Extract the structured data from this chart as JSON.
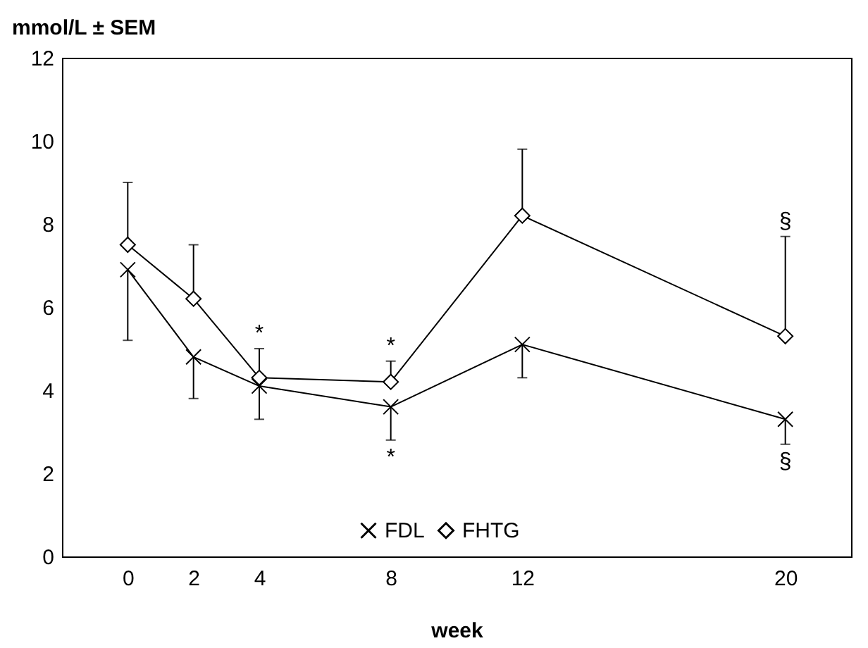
{
  "chart_data": {
    "type": "line",
    "x": [
      0,
      2,
      4,
      8,
      12,
      20
    ],
    "xlabel": "week",
    "ylabel": "mmol/L ± SEM",
    "xlim": [
      -2,
      22
    ],
    "xticks": [
      0,
      2,
      4,
      8,
      12,
      20
    ],
    "ylim": [
      0,
      12
    ],
    "yticks": [
      0,
      2,
      4,
      6,
      8,
      10,
      12
    ],
    "grid": false,
    "legend": "bottom",
    "line_style": "solid",
    "series": [
      {
        "name": "FDL",
        "color": "#000000",
        "marker": "cross",
        "values": [
          6.9,
          4.8,
          4.1,
          3.6,
          5.1,
          3.3
        ],
        "errors": [
          [
            5.2,
            6.9
          ],
          [
            3.8,
            4.8
          ],
          [
            3.3,
            4.1
          ],
          [
            2.8,
            3.6
          ],
          [
            4.3,
            5.1
          ],
          [
            2.7,
            3.3
          ]
        ]
      },
      {
        "name": "FHTG",
        "color": "#000000",
        "marker": "diamond",
        "values": [
          7.5,
          6.2,
          4.3,
          4.2,
          8.2,
          5.3
        ],
        "errors": [
          [
            7.5,
            9.0
          ],
          [
            6.2,
            7.5
          ],
          [
            4.3,
            5.0
          ],
          [
            4.2,
            4.7
          ],
          [
            8.2,
            9.8
          ],
          [
            5.3,
            7.7
          ]
        ]
      }
    ],
    "annotations": [
      {
        "text": "*",
        "x": 4,
        "y": 5.0
      },
      {
        "text": "*",
        "x": 8,
        "y": 4.7
      },
      {
        "text": "*",
        "x": 8,
        "y": 2.8
      },
      {
        "text": "§",
        "x": 20,
        "y": 7.7
      },
      {
        "text": "§",
        "x": 20,
        "y": 2.7
      }
    ]
  }
}
